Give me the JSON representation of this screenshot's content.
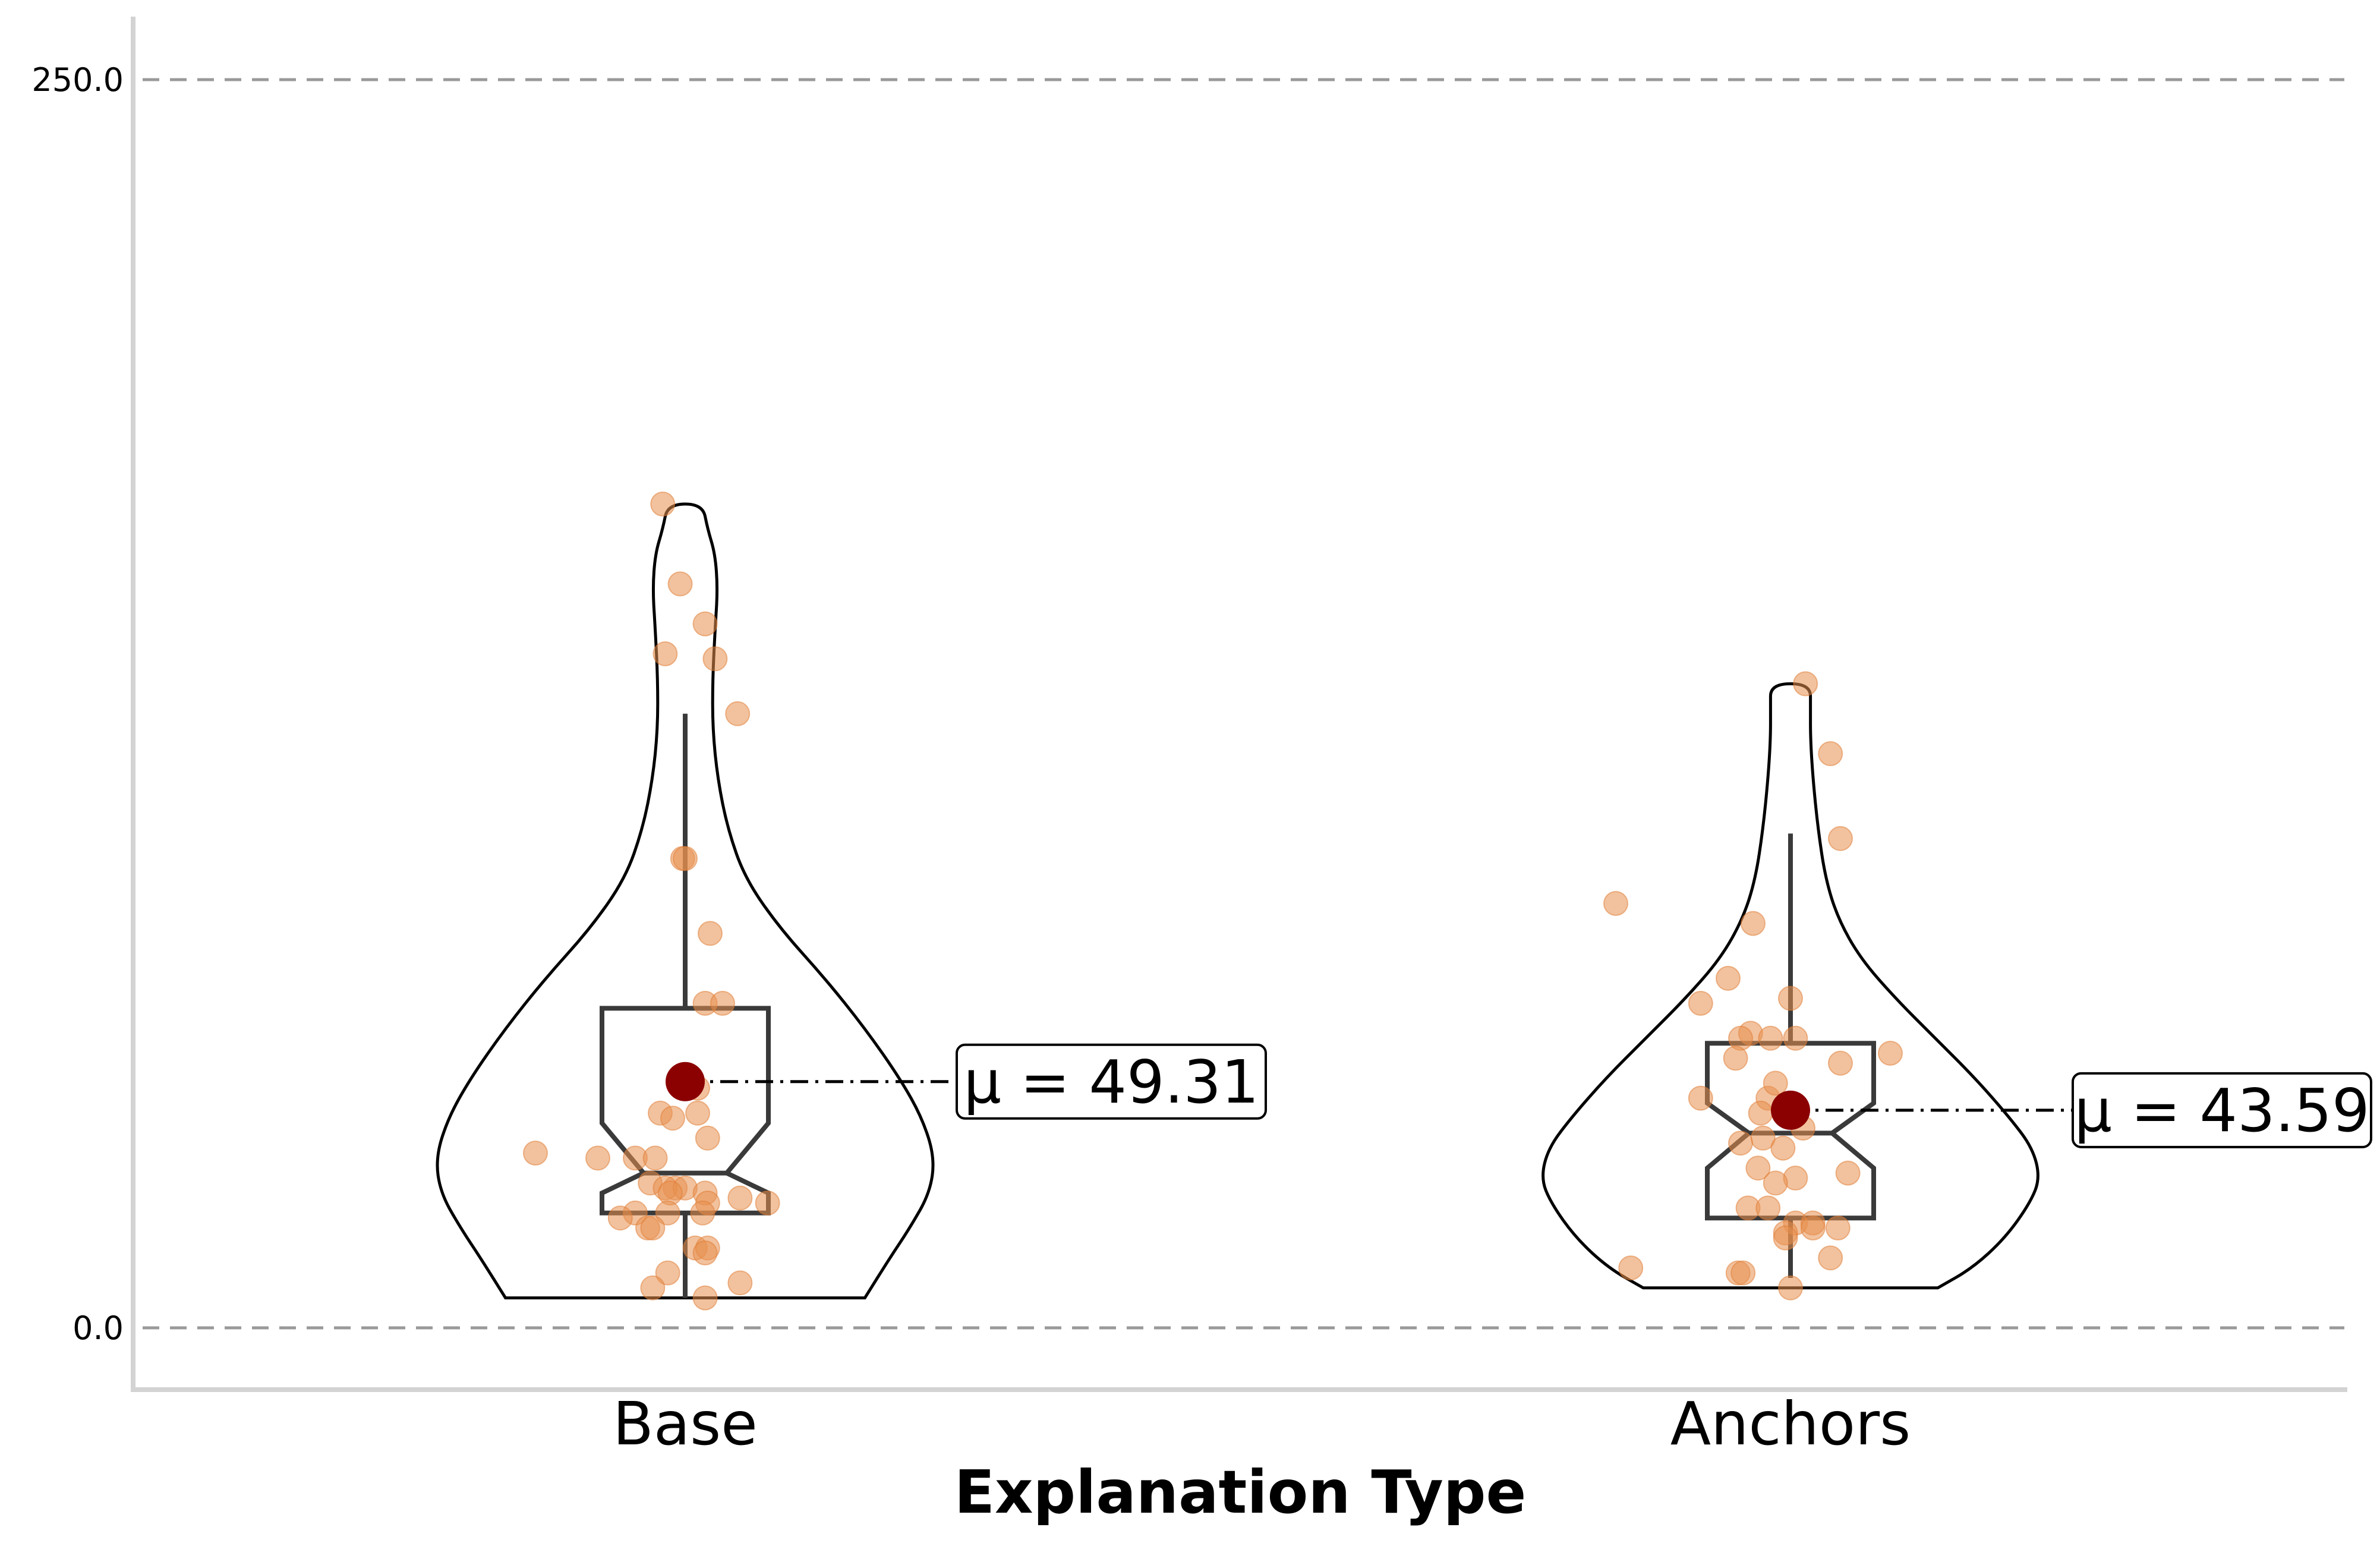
{
  "chart_data": {
    "type": "violin",
    "title": "",
    "xlabel": "Explanation Type",
    "ylabel": "",
    "ylim": [
      -16,
      338
    ],
    "yticks": [
      {
        "value": 0,
        "label": "0.0"
      },
      {
        "value": 250,
        "label": "250.0"
      }
    ],
    "grid": "dashed horizontal lines at y ticks",
    "categories": [
      "Base",
      "Anchors"
    ],
    "colors": {
      "violin_edge": "#000000",
      "box_edge": "#3a3a3a",
      "points": "#e8904f",
      "mean_marker": "#8b0000",
      "gridline": "#999999",
      "axis": "#d3d3d3"
    },
    "series": [
      {
        "category": "Base",
        "mean": 49.31,
        "mean_label": "μ = 49.31",
        "box": {
          "q1": 23,
          "median": 31,
          "q3": 64,
          "whisker_low": 6,
          "whisker_high": 123,
          "notch_low": 27,
          "notch_high": 41
        },
        "violin": {
          "min": 6,
          "max": 165,
          "profile": [
            [
              6,
              0.72
            ],
            [
              14,
              0.82
            ],
            [
              20,
              0.9
            ],
            [
              27,
              0.98
            ],
            [
              34,
              1.0
            ],
            [
              42,
              0.95
            ],
            [
              50,
              0.86
            ],
            [
              60,
              0.72
            ],
            [
              70,
              0.56
            ],
            [
              80,
              0.38
            ],
            [
              90,
              0.24
            ],
            [
              100,
              0.17
            ],
            [
              110,
              0.13
            ],
            [
              120,
              0.11
            ],
            [
              130,
              0.11
            ],
            [
              140,
              0.12
            ],
            [
              148,
              0.13
            ],
            [
              155,
              0.12
            ],
            [
              160,
              0.09
            ],
            [
              165,
              0.07
            ]
          ]
        },
        "points": [
          [
            -0.09,
            165
          ],
          [
            -0.02,
            149
          ],
          [
            0.08,
            141
          ],
          [
            -0.08,
            135
          ],
          [
            0.12,
            134
          ],
          [
            0.21,
            123
          ],
          [
            -0.01,
            94
          ],
          [
            0.0,
            94
          ],
          [
            0.1,
            79
          ],
          [
            0.08,
            65
          ],
          [
            0.15,
            65
          ],
          [
            0.05,
            48
          ],
          [
            -0.1,
            43
          ],
          [
            0.05,
            43
          ],
          [
            -0.05,
            42
          ],
          [
            0.09,
            38
          ],
          [
            -0.6,
            35
          ],
          [
            -0.35,
            34
          ],
          [
            -0.2,
            34
          ],
          [
            -0.12,
            34
          ],
          [
            -0.14,
            29
          ],
          [
            -0.04,
            28
          ],
          [
            -0.08,
            28
          ],
          [
            0.0,
            28
          ],
          [
            -0.06,
            27
          ],
          [
            0.08,
            27
          ],
          [
            0.22,
            26
          ],
          [
            0.33,
            25
          ],
          [
            0.09,
            25
          ],
          [
            -0.2,
            23
          ],
          [
            -0.07,
            23
          ],
          [
            0.07,
            23
          ],
          [
            -0.26,
            22
          ],
          [
            -0.15,
            20
          ],
          [
            -0.13,
            20
          ],
          [
            0.04,
            16
          ],
          [
            0.09,
            16
          ],
          [
            0.08,
            15
          ],
          [
            -0.07,
            11
          ],
          [
            0.22,
            9
          ],
          [
            -0.13,
            8
          ],
          [
            0.08,
            6
          ]
        ]
      },
      {
        "category": "Anchors",
        "mean": 43.59,
        "mean_label": "μ = 43.59",
        "box": {
          "q1": 22,
          "median": 39,
          "q3": 57,
          "whisker_low": 10,
          "whisker_high": 99,
          "notch_low": 32,
          "notch_high": 45
        },
        "violin": {
          "min": 8,
          "max": 129,
          "profile": [
            [
              8,
              0.59
            ],
            [
              12,
              0.73
            ],
            [
              18,
              0.86
            ],
            [
              25,
              0.96
            ],
            [
              30,
              1.0
            ],
            [
              36,
              0.97
            ],
            [
              42,
              0.88
            ],
            [
              50,
              0.74
            ],
            [
              58,
              0.58
            ],
            [
              66,
              0.42
            ],
            [
              74,
              0.28
            ],
            [
              82,
              0.19
            ],
            [
              90,
              0.14
            ],
            [
              100,
              0.11
            ],
            [
              110,
              0.09
            ],
            [
              118,
              0.08
            ],
            [
              124,
              0.08
            ],
            [
              129,
              0.08
            ]
          ]
        },
        "points": [
          [
            0.06,
            129
          ],
          [
            0.16,
            115
          ],
          [
            0.2,
            98
          ],
          [
            -0.7,
            85
          ],
          [
            -0.15,
            81
          ],
          [
            -0.25,
            70
          ],
          [
            -0.36,
            65
          ],
          [
            0.0,
            66
          ],
          [
            -0.16,
            59
          ],
          [
            -0.08,
            58
          ],
          [
            -0.2,
            58
          ],
          [
            0.2,
            53
          ],
          [
            -0.22,
            54
          ],
          [
            0.4,
            55
          ],
          [
            0.02,
            58
          ],
          [
            -0.09,
            46
          ],
          [
            -0.06,
            49
          ],
          [
            0.05,
            40
          ],
          [
            -0.36,
            46
          ],
          [
            -0.12,
            43
          ],
          [
            -0.11,
            38
          ],
          [
            -0.03,
            36
          ],
          [
            -0.2,
            37
          ],
          [
            -0.13,
            32
          ],
          [
            0.02,
            30
          ],
          [
            0.23,
            31
          ],
          [
            -0.06,
            29
          ],
          [
            -0.17,
            24
          ],
          [
            -0.09,
            24
          ],
          [
            0.02,
            21
          ],
          [
            0.09,
            21
          ],
          [
            0.19,
            20
          ],
          [
            -0.02,
            19
          ],
          [
            0.09,
            20
          ],
          [
            -0.02,
            18
          ],
          [
            0.16,
            14
          ],
          [
            -0.64,
            12
          ],
          [
            -0.21,
            11
          ],
          [
            -0.19,
            11
          ],
          [
            0.0,
            8
          ]
        ]
      }
    ]
  }
}
